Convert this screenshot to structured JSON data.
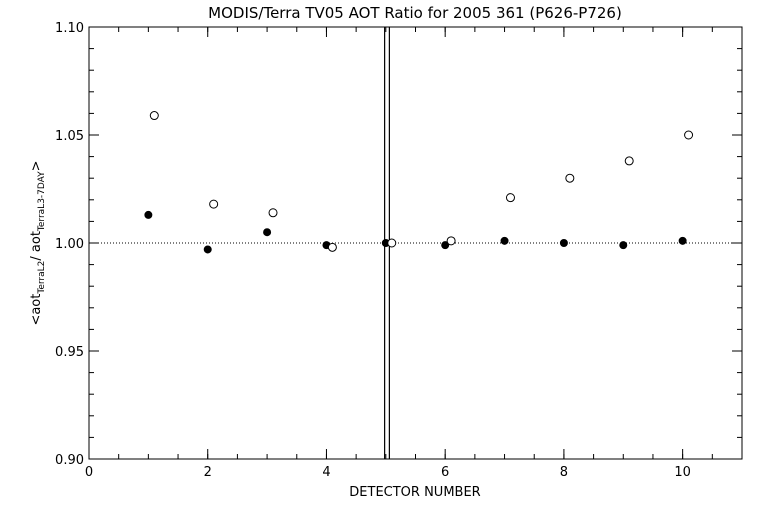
{
  "chart_data": {
    "type": "scatter",
    "title": "MODIS/Terra TV05 AOT Ratio for 2005 361 (P626-P726)",
    "xlabel": "DETECTOR NUMBER",
    "ylabel": {
      "prefix": "<aot",
      "sub1": "TerraL2",
      "middle": "/ aot",
      "sub2": "TerraL3-7DAY",
      "suffix": ">"
    },
    "xlim": [
      0,
      11
    ],
    "ylim": [
      0.9,
      1.1
    ],
    "x_ticks": [
      0,
      2,
      4,
      6,
      8,
      10
    ],
    "x_tick_labels": [
      "0",
      "2",
      "4",
      "6",
      "8",
      "10"
    ],
    "y_ticks": [
      0.9,
      0.95,
      1.0,
      1.05,
      1.1
    ],
    "y_tick_labels": [
      "0.90",
      "0.95",
      "1.00",
      "1.05",
      "1.10"
    ],
    "reference_line": {
      "y": 1.0,
      "style": "dotted"
    },
    "vertical_lines": [
      4.98,
      5.06
    ],
    "series": [
      {
        "marker": "filled-circle",
        "x": [
          1,
          2,
          3,
          4,
          5,
          6,
          7,
          8,
          9,
          10
        ],
        "y": [
          1.013,
          0.997,
          1.005,
          0.999,
          1.0,
          0.999,
          1.001,
          1.0,
          0.999,
          1.001
        ]
      },
      {
        "marker": "open-circle",
        "x": [
          1.1,
          2.1,
          3.1,
          4.1,
          5.1,
          6.1,
          7.1,
          8.1,
          9.1,
          10.1
        ],
        "y": [
          1.059,
          1.018,
          1.014,
          0.998,
          1.0,
          1.001,
          1.021,
          1.03,
          1.038,
          1.05
        ]
      }
    ]
  }
}
